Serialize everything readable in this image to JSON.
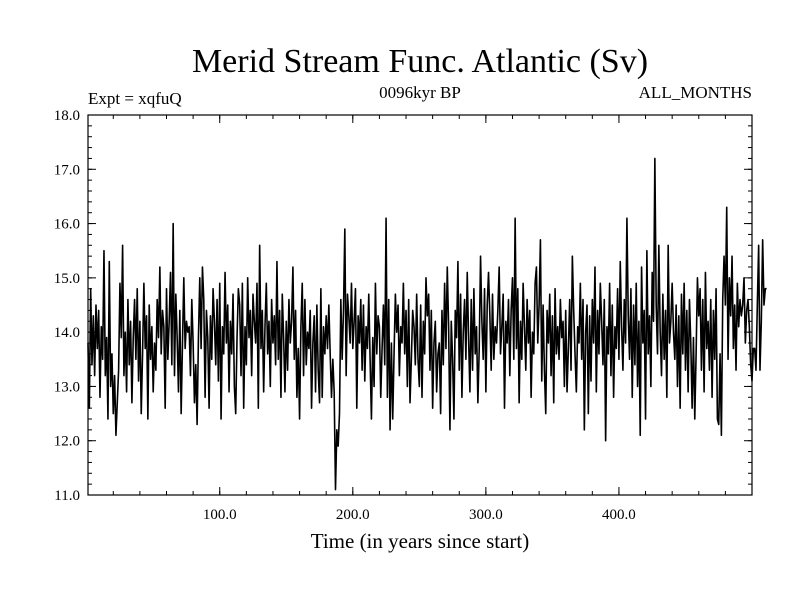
{
  "chart_data": {
    "type": "line",
    "title": "Merid Stream Func. Atlantic (Sv)",
    "subtitle_left": "Expt = xqfuQ",
    "subtitle_center": "0096kyr BP",
    "subtitle_right": "ALL_MONTHS",
    "xlabel": "Time (in years since start)",
    "ylabel": "",
    "xlim": [
      1,
      500
    ],
    "ylim": [
      11.0,
      18.0
    ],
    "xticks": [
      100,
      200,
      300,
      400
    ],
    "xtick_labels": [
      "100.0",
      "200.0",
      "300.0",
      "400.0"
    ],
    "yticks": [
      11,
      12,
      13,
      14,
      15,
      16,
      17,
      18
    ],
    "ytick_labels": [
      "11.0",
      "12.0",
      "13.0",
      "14.0",
      "15.0",
      "16.0",
      "17.0",
      "18.0"
    ],
    "series": [
      {
        "name": "Merid Stream Func. Atlantic",
        "x_start": 1,
        "x_step": 1,
        "values": [
          13.8,
          12.6,
          14.8,
          13.4,
          14.3,
          13.2,
          14.5,
          13.7,
          14.4,
          12.8,
          14.1,
          13.5,
          15.5,
          13.2,
          13.9,
          12.4,
          15.3,
          13.0,
          13.6,
          12.5,
          13.2,
          12.1,
          12.7,
          13.3,
          14.9,
          13.9,
          15.6,
          13.2,
          14.0,
          12.9,
          14.6,
          13.4,
          14.2,
          12.7,
          13.9,
          14.6,
          13.5,
          14.8,
          13.1,
          14.2,
          12.5,
          13.6,
          14.9,
          13.7,
          14.3,
          12.4,
          14.5,
          13.5,
          14.1,
          12.9,
          13.8,
          13.3,
          14.6,
          13.9,
          15.2,
          13.6,
          14.4,
          14.1,
          12.6,
          14.8,
          13.5,
          14.2,
          15.1,
          13.4,
          16.0,
          13.2,
          14.7,
          13.9,
          12.9,
          14.4,
          12.5,
          13.8,
          15.0,
          13.7,
          14.2,
          14.0,
          14.1,
          13.2,
          14.6,
          13.8,
          12.7,
          13.4,
          12.3,
          13.9,
          15.0,
          13.7,
          15.2,
          14.6,
          12.8,
          14.4,
          13.9,
          12.6,
          14.3,
          13.5,
          14.8,
          14.2,
          13.4,
          14.6,
          13.1,
          14.9,
          12.4,
          14.1,
          13.6,
          15.1,
          13.8,
          14.5,
          12.9,
          14.2,
          13.6,
          14.7,
          13.0,
          12.5,
          13.9,
          14.8,
          14.5,
          13.2,
          14.9,
          12.6,
          14.1,
          13.4,
          15.0,
          13.9,
          14.4,
          13.2,
          14.7,
          14.2,
          13.8,
          14.9,
          12.6,
          15.6,
          13.7,
          14.4,
          12.9,
          14.1,
          14.9,
          13.6,
          14.2,
          13.0,
          14.6,
          13.8,
          14.3,
          13.4,
          15.3,
          13.5,
          14.4,
          12.8,
          14.7,
          13.9,
          12.9,
          14.2,
          13.3,
          14.6,
          13.8,
          14.2,
          15.2,
          13.5,
          14.4,
          12.8,
          13.7,
          12.4,
          14.1,
          14.9,
          13.2,
          14.6,
          13.4,
          14.0,
          13.7,
          14.4,
          12.6,
          13.8,
          14.3,
          12.9,
          14.5,
          13.3,
          12.7,
          14.8,
          12.8,
          14.1,
          13.6,
          14.3,
          13.7,
          14.5,
          13.6,
          12.8,
          13.5,
          12.9,
          11.1,
          12.2,
          11.9,
          12.5,
          14.6,
          13.5,
          14.4,
          15.9,
          13.2,
          14.7,
          14.3,
          13.8,
          14.9,
          13.7,
          14.2,
          14.8,
          12.6,
          14.3,
          13.8,
          14.6,
          13.3,
          14.5,
          13.1,
          14.1,
          13.7,
          14.7,
          13.5,
          12.4,
          13.9,
          13.0,
          14.9,
          13.6,
          14.3,
          14.1,
          12.8,
          13.7,
          14.5,
          13.4,
          16.1,
          12.8,
          14.6,
          12.2,
          13.8,
          12.4,
          13.6,
          14.7,
          14.0,
          14.5,
          13.2,
          14.1,
          13.8,
          14.9,
          13.6,
          14.4,
          13.0,
          14.6,
          12.7,
          13.5,
          14.4,
          14.1,
          13.4,
          14.7,
          13.5,
          13.0,
          14.5,
          12.8,
          14.2,
          13.6,
          15.0,
          14.3,
          14.7,
          13.3,
          14.4,
          12.6,
          13.8,
          14.2,
          12.9,
          13.6,
          13.8,
          12.5,
          14.4,
          13.4,
          14.9,
          13.7,
          15.2,
          14.1,
          12.2,
          14.2,
          13.5,
          12.4,
          14.4,
          13.9,
          15.3,
          13.3,
          14.7,
          12.8,
          14.0,
          14.6,
          13.5,
          15.1,
          13.9,
          12.9,
          14.6,
          13.3,
          14.8,
          13.6,
          14.1,
          12.7,
          13.7,
          15.4,
          14.2,
          13.5,
          14.8,
          12.9,
          14.5,
          15.1,
          14.3,
          13.3,
          14.7,
          13.5,
          14.1,
          13.8,
          14.4,
          15.2,
          13.6,
          14.1,
          14.7,
          12.6,
          14.2,
          13.8,
          14.6,
          13.2,
          14.4,
          15.0,
          13.5,
          16.1,
          13.7,
          14.8,
          12.7,
          14.2,
          13.5,
          14.9,
          14.1,
          13.3,
          14.6,
          13.8,
          14.4,
          12.8,
          14.0,
          13.6,
          14.9,
          15.2,
          13.8,
          14.5,
          15.7,
          13.1,
          14.5,
          13.3,
          12.5,
          14.4,
          13.8,
          14.7,
          13.2,
          14.3,
          12.7,
          14.8,
          13.6,
          14.1,
          13.5,
          14.6,
          13.9,
          14.2,
          13.0,
          14.4,
          12.9,
          13.7,
          14.6,
          13.3,
          15.4,
          14.4,
          13.6,
          12.9,
          14.1,
          13.8,
          14.9,
          13.5,
          14.6,
          12.2,
          14.0,
          14.5,
          12.5,
          14.3,
          13.1,
          14.6,
          13.8,
          15.2,
          12.9,
          14.4,
          13.6,
          14.9,
          14.2,
          13.4,
          14.6,
          12.0,
          14.1,
          13.6,
          14.9,
          13.2,
          14.5,
          12.8,
          14.1,
          13.7,
          14.8,
          13.5,
          15.3,
          14.1,
          13.3,
          14.6,
          13.8,
          16.1,
          14.3,
          13.5,
          14.8,
          12.8,
          14.5,
          13.4,
          14.9,
          13.0,
          14.2,
          12.1,
          15.2,
          13.8,
          14.4,
          12.4,
          15.5,
          13.6,
          14.3,
          13.0,
          15.1,
          14.2,
          17.2,
          14.5,
          13.6,
          15.6,
          14.0,
          13.2,
          14.7,
          13.5,
          14.4,
          12.8,
          15.6,
          13.8,
          14.2,
          14.9,
          14.0,
          13.5,
          14.5,
          13.0,
          14.3,
          12.6,
          14.7,
          13.6,
          14.9,
          13.3,
          14.4,
          12.9,
          14.6,
          13.8,
          12.6,
          13.9,
          12.4,
          13.6,
          15.0,
          14.3,
          14.8,
          13.3,
          14.6,
          12.9,
          15.1,
          13.7,
          14.2,
          13.3,
          14.6,
          12.8,
          14.4,
          13.5,
          14.8,
          12.4,
          12.3,
          13.6,
          12.1,
          14.6,
          15.4,
          14.5,
          16.3,
          13.5,
          15.0,
          14.3,
          15.4,
          13.7,
          14.5,
          13.3,
          14.9,
          14.1,
          14.6,
          14.3,
          14.5,
          15.0,
          13.8,
          14.4,
          14.6,
          14.1,
          13.4,
          13.1,
          13.7,
          13.7,
          13.3,
          14.5,
          15.6,
          13.3,
          14.2,
          15.7,
          14.5,
          14.8,
          14.8
        ]
      }
    ]
  }
}
